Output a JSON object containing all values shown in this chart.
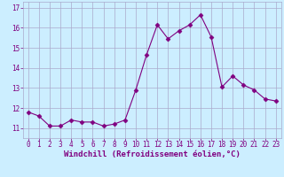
{
  "x": [
    0,
    1,
    2,
    3,
    4,
    5,
    6,
    7,
    8,
    9,
    10,
    11,
    12,
    13,
    14,
    15,
    16,
    17,
    18,
    19,
    20,
    21,
    22,
    23
  ],
  "y": [
    11.8,
    11.6,
    11.1,
    11.1,
    11.4,
    11.3,
    11.3,
    11.1,
    11.2,
    11.4,
    12.9,
    14.65,
    16.15,
    15.45,
    15.85,
    16.15,
    16.65,
    15.55,
    13.05,
    13.6,
    13.15,
    12.9,
    12.45,
    12.35
  ],
  "line_color": "#800080",
  "marker": "D",
  "marker_size": 2.5,
  "bg_color": "#cceeff",
  "grid_color": "#aaaacc",
  "xlabel": "Windchill (Refroidissement éolien,°C)",
  "xlabel_color": "#800080",
  "tick_color": "#800080",
  "label_color": "#800080",
  "ylim": [
    10.5,
    17.3
  ],
  "yticks": [
    11,
    12,
    13,
    14,
    15,
    16,
    17
  ],
  "xlim": [
    -0.5,
    23.5
  ],
  "xticks": [
    0,
    1,
    2,
    3,
    4,
    5,
    6,
    7,
    8,
    9,
    10,
    11,
    12,
    13,
    14,
    15,
    16,
    17,
    18,
    19,
    20,
    21,
    22,
    23
  ],
  "tick_fontsize": 5.5,
  "xlabel_fontsize": 6.5
}
